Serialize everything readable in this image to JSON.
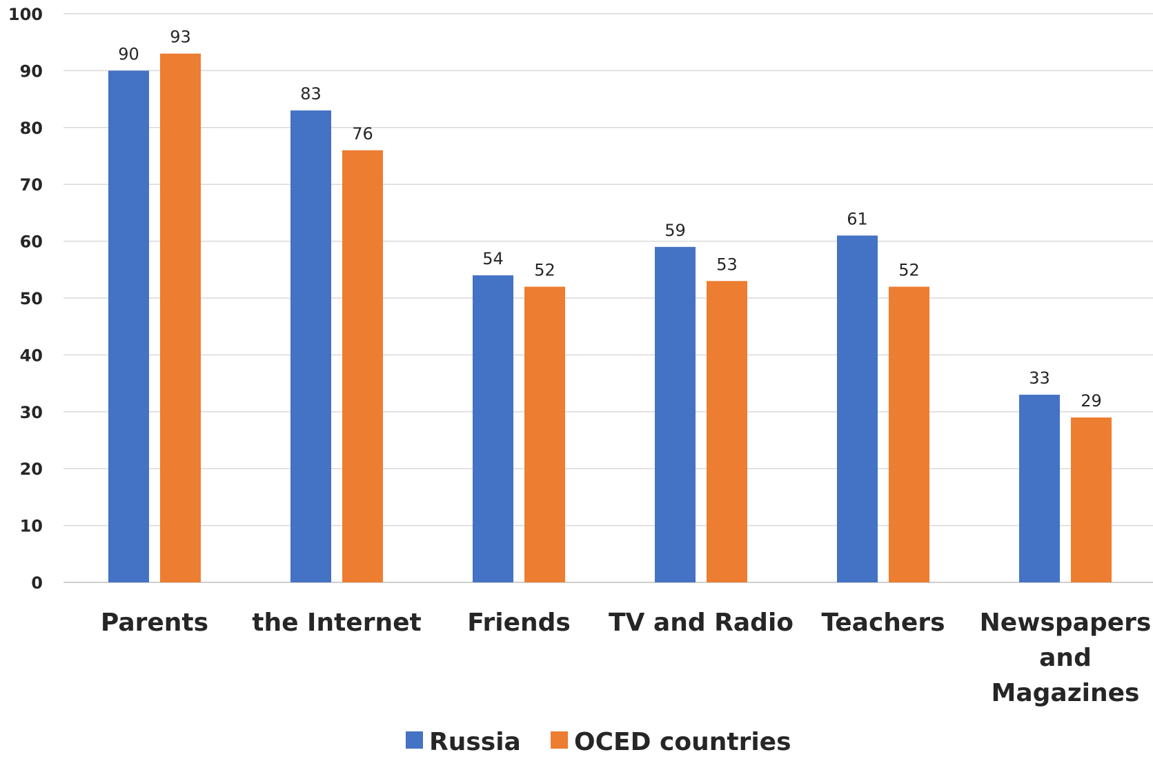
{
  "chart_data": {
    "type": "bar",
    "title": "",
    "xlabel": "",
    "ylabel": "",
    "ylim": [
      0,
      100
    ],
    "yticks": [
      0,
      10,
      20,
      30,
      40,
      50,
      60,
      70,
      80,
      90,
      100
    ],
    "grid": true,
    "legend_position": "bottom",
    "categories": [
      [
        "Parents"
      ],
      [
        "the Internet"
      ],
      [
        "Friends"
      ],
      [
        "TV and Radio"
      ],
      [
        "Teachers"
      ],
      [
        "Newspapers",
        "and",
        "Magazines"
      ]
    ],
    "series": [
      {
        "name": "Russia",
        "color": "#4472c4",
        "values": [
          90,
          83,
          54,
          59,
          61,
          33
        ]
      },
      {
        "name": "OCED countries",
        "color": "#ed7d31",
        "values": [
          93,
          76,
          52,
          53,
          52,
          29
        ]
      }
    ]
  }
}
